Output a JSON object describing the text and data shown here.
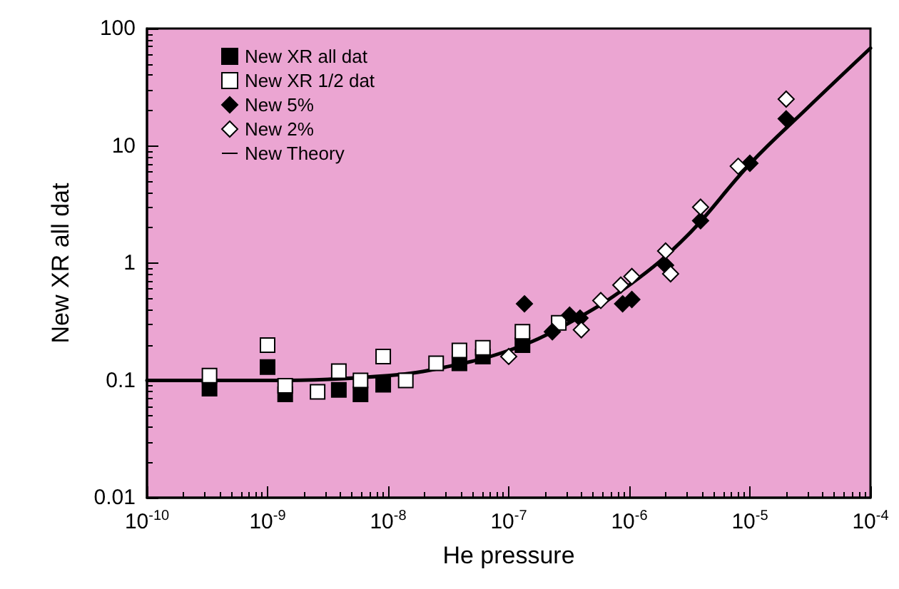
{
  "chart_data": {
    "type": "scatter",
    "xlabel": "He pressure",
    "ylabel": "New XR all dat",
    "log": "xy",
    "xlim": [
      1e-10,
      0.0001
    ],
    "ylim": [
      0.01,
      100
    ],
    "xticks": [
      {
        "value": 1e-10,
        "label": "10$^{-10}$"
      },
      {
        "value": 1e-09,
        "label": "10$^{-9}$"
      },
      {
        "value": 1e-08,
        "label": "10$^{-8}$"
      },
      {
        "value": 1e-07,
        "label": "10$^{-7}$"
      },
      {
        "value": 1e-06,
        "label": "10$^{-6}$"
      },
      {
        "value": 1e-05,
        "label": "10$^{-5}$"
      },
      {
        "value": 0.0001,
        "label": "10$^{-4}$"
      }
    ],
    "yticks": [
      0.01,
      0.1,
      1,
      10,
      100
    ],
    "grid": false,
    "legend": "top left",
    "series": [
      {
        "name": "New XR all dat",
        "marker": "square",
        "color": "#000000",
        "x": [
          3.3e-10,
          1e-09,
          1.4e-09,
          3.9e-09,
          5.9e-09,
          9.1e-09,
          3.9e-08,
          6.1e-08,
          1.3e-07
        ],
        "values": [
          0.085,
          0.13,
          0.076,
          0.083,
          0.076,
          0.092,
          0.14,
          0.16,
          0.2
        ]
      },
      {
        "name": "New XR 1/2 dat",
        "marker": "square",
        "color": "#ffffff",
        "x": [
          3.3e-10,
          1e-09,
          1.4e-09,
          2.6e-09,
          3.9e-09,
          5.9e-09,
          9.1e-09,
          1.4e-08,
          2.5e-08,
          3.9e-08,
          6.1e-08,
          1.3e-07,
          2.6e-07
        ],
        "values": [
          0.11,
          0.2,
          0.09,
          0.08,
          0.12,
          0.1,
          0.16,
          0.1,
          0.14,
          0.18,
          0.19,
          0.26,
          0.31
        ]
      },
      {
        "name": "New 5%",
        "marker": "diamond",
        "color": "#000000",
        "x": [
          1.35e-07,
          2.3e-07,
          3.2e-07,
          3.9e-07,
          8.8e-07,
          1.05e-06,
          2e-06,
          3.9e-06,
          1e-05,
          2e-05
        ],
        "values": [
          0.45,
          0.26,
          0.36,
          0.34,
          0.45,
          0.49,
          0.96,
          2.3,
          7.1,
          17
        ]
      },
      {
        "name": "New 2%",
        "marker": "diamond",
        "color": "#ffffff",
        "x": [
          1e-07,
          4e-07,
          5.8e-07,
          8.5e-07,
          1.05e-06,
          2e-06,
          2.2e-06,
          3.9e-06,
          8e-06,
          2e-05
        ],
        "values": [
          0.16,
          0.27,
          0.48,
          0.65,
          0.77,
          1.27,
          0.81,
          3,
          6.7,
          25
        ]
      },
      {
        "name": "New Theory",
        "type": "line",
        "marker": "none",
        "line_style": "solid",
        "color": "#000000",
        "x": [
          1e-10,
          1e-09,
          1e-08,
          3e-08,
          1e-07,
          3e-07,
          1e-06,
          3e-06,
          1e-05,
          3e-05,
          0.0001
        ],
        "values": [
          0.1,
          0.1,
          0.11,
          0.13,
          0.18,
          0.3,
          0.65,
          1.7,
          7,
          21,
          68
        ]
      }
    ]
  }
}
